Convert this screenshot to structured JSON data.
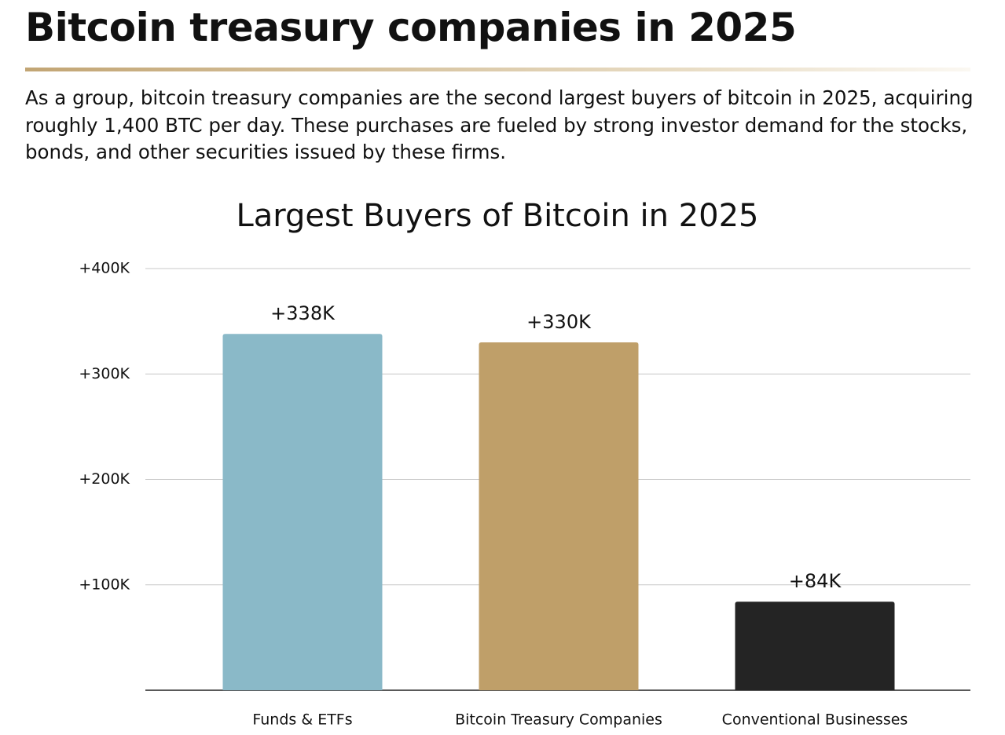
{
  "header": {
    "title": "Bitcoin treasury companies in 2025",
    "intro": "As a group, bitcoin treasury companies are the second largest buyers of bitcoin in 2025, acquiring roughly 1,400 BTC per day. These purchases are fueled by strong investor demand for the stocks, bonds, and other securities issued by these firms."
  },
  "chart_data": {
    "type": "bar",
    "title": "Largest Buyers of Bitcoin in 2025",
    "categories": [
      "Funds & ETFs",
      "Bitcoin Treasury Companies",
      "Conventional Businesses"
    ],
    "values": [
      338000,
      330000,
      84000
    ],
    "value_labels": [
      "+338K",
      "+330K",
      "+84K"
    ],
    "colors": [
      "#8ab9c8",
      "#bf9f69",
      "#242424"
    ],
    "ylim": [
      0,
      400000
    ],
    "yticks": [
      {
        "value": 100000,
        "label": "+100K"
      },
      {
        "value": 200000,
        "label": "+200K"
      },
      {
        "value": 300000,
        "label": "+300K"
      },
      {
        "value": 400000,
        "label": "+400K"
      }
    ],
    "grid": true
  }
}
